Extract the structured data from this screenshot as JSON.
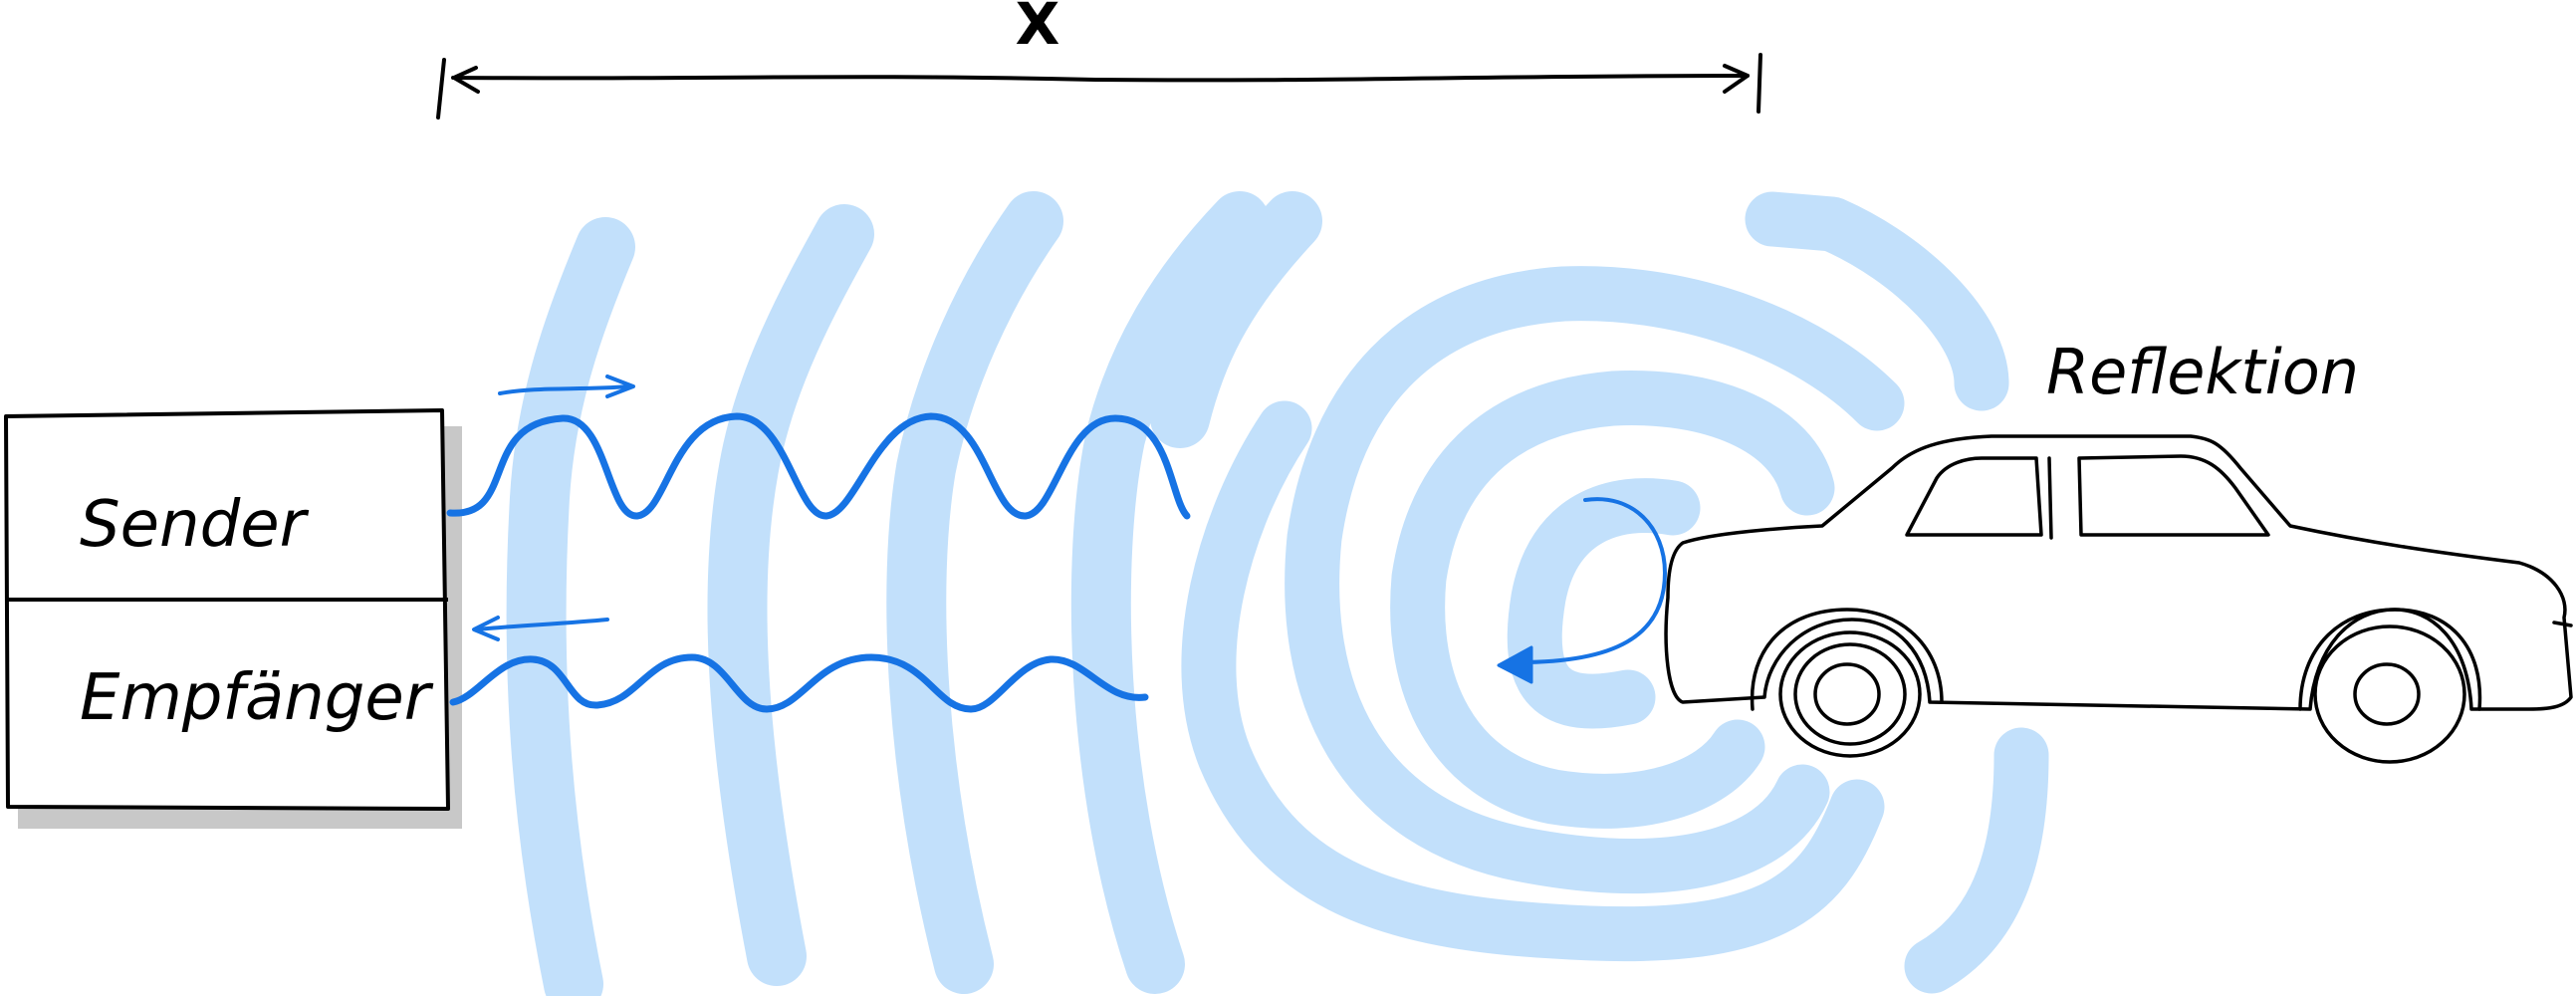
{
  "diagram": {
    "distance_label": "X",
    "box": {
      "top_label": "Sender",
      "bottom_label": "Empfänger"
    },
    "reflection_label": "Reflektion"
  },
  "colors": {
    "wave_fill": "#c2e0fb",
    "signal": "#1673e4",
    "ink": "#000000",
    "shadow": "#c8c8c8"
  }
}
